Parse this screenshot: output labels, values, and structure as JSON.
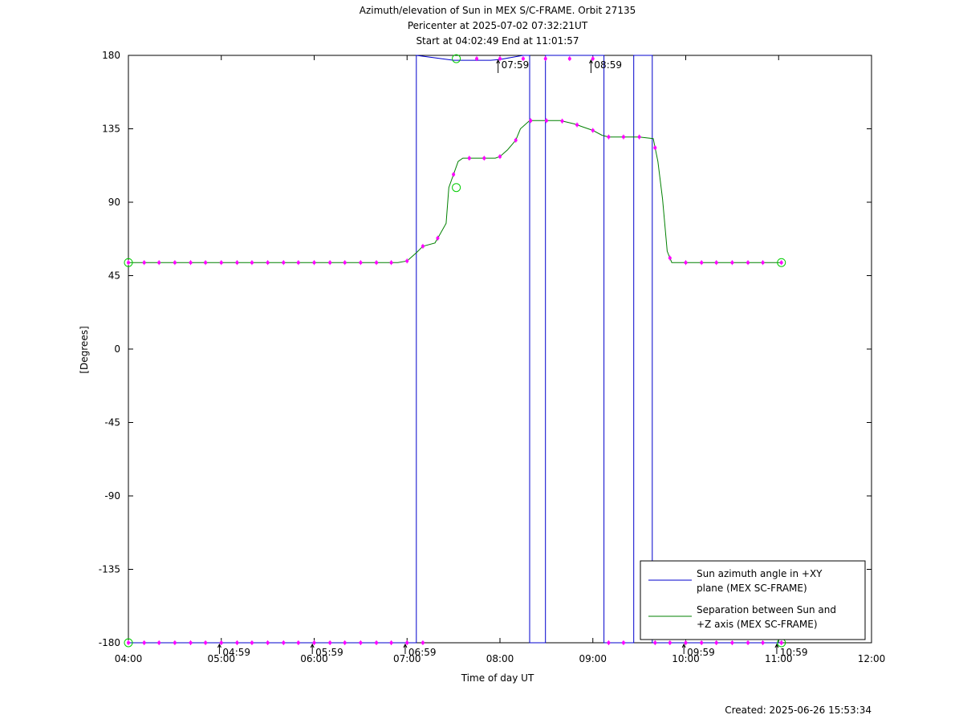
{
  "chart_data": {
    "type": "line",
    "title": [
      "Azimuth/elevation of Sun in MEX S/C-FRAME.  Orbit 27135",
      "Pericenter at 2025-07-02 07:32:21UT",
      "Start at 04:02:49 End at 11:01:57"
    ],
    "xlabel": "Time of day UT",
    "ylabel": "[Degrees]",
    "xlim": [
      4.0,
      12.0
    ],
    "ylim": [
      -180,
      180
    ],
    "x_ticks": [
      4,
      5,
      6,
      7,
      8,
      9,
      10,
      11,
      12
    ],
    "x_tick_labels": [
      "04:00",
      "05:00",
      "06:00",
      "07:00",
      "08:00",
      "09:00",
      "10:00",
      "11:00",
      "12:00"
    ],
    "y_ticks": [
      180,
      135,
      90,
      45,
      0,
      -45,
      -90,
      -135,
      -180
    ],
    "y_tick_labels": [
      "180",
      "135",
      "90",
      "45",
      "0",
      "-45",
      "-90",
      "-135",
      "-180"
    ],
    "grid": false,
    "legend_position": "bottom-right",
    "series": [
      {
        "name": "Sun azimuth angle in +XY plane (MEX SC-FRAME)",
        "legend_lines": [
          "Sun azimuth angle in +XY",
          "plane (MEX SC-FRAME)"
        ],
        "color": "#0000cc",
        "x": [
          4.0,
          7.1,
          7.1,
          7.5,
          7.9,
          8.0,
          8.25,
          8.32,
          8.32,
          8.49,
          8.49,
          8.55,
          9.0,
          9.12,
          9.12,
          9.44,
          9.44,
          9.64,
          9.64,
          11.03
        ],
        "y": [
          -180,
          -180,
          180,
          177,
          177,
          177.5,
          180,
          180,
          -180,
          -180,
          180,
          180,
          180,
          180,
          -180,
          -180,
          180,
          180,
          -180,
          -180
        ]
      },
      {
        "name": "Separation between Sun and +Z axis (MEX SC-FRAME)",
        "legend_lines": [
          "Separation between Sun and",
          "+Z axis (MEX SC-FRAME)"
        ],
        "color": "#008000",
        "x": [
          4.0,
          6.9,
          7.0,
          7.1,
          7.17,
          7.3,
          7.35,
          7.42,
          7.45,
          7.55,
          7.6,
          7.85,
          7.95,
          8.0,
          8.08,
          8.17,
          8.22,
          8.32,
          8.5,
          8.65,
          8.8,
          8.9,
          9.0,
          9.1,
          9.17,
          9.3,
          9.5,
          9.65,
          9.7,
          9.75,
          9.8,
          9.85,
          11.03
        ],
        "y": [
          53,
          53,
          54,
          59,
          63,
          65,
          70,
          77,
          99,
          115,
          117,
          117,
          117,
          118,
          122,
          128,
          135,
          140,
          140,
          140,
          138,
          136,
          134,
          131,
          130,
          130,
          130,
          129,
          115,
          92,
          60,
          53,
          53
        ]
      }
    ],
    "markers": {
      "circle_points": [
        {
          "x": 4.0,
          "y": 53
        },
        {
          "x": 11.03,
          "y": 53
        },
        {
          "x": 4.0,
          "y": -180
        },
        {
          "x": 11.03,
          "y": -180
        },
        {
          "x": 7.53,
          "y": 178
        },
        {
          "x": 7.53,
          "y": 99
        }
      ],
      "tick_marks_azimuth_top": [
        7.75,
        8.0,
        8.25,
        8.49,
        8.75,
        9.0
      ],
      "tick_marks_azimuth_bottom": [
        4.0,
        4.17,
        4.33,
        4.5,
        4.67,
        4.83,
        5.0,
        5.17,
        5.33,
        5.5,
        5.67,
        5.83,
        6.0,
        6.17,
        6.33,
        6.5,
        6.67,
        6.83,
        7.0,
        7.17,
        9.17,
        9.33,
        9.67,
        9.83,
        10.0,
        10.17,
        10.33,
        10.5,
        10.67,
        10.83,
        11.03
      ],
      "tick_marks_separation": [
        4.0,
        4.17,
        4.33,
        4.5,
        4.67,
        4.83,
        5.0,
        5.17,
        5.33,
        5.5,
        5.67,
        5.83,
        6.0,
        6.17,
        6.33,
        6.5,
        6.67,
        6.83,
        7.0,
        7.17,
        7.33,
        7.5,
        7.67,
        7.83,
        8.0,
        8.17,
        8.33,
        8.5,
        8.67,
        8.83,
        9.0,
        9.17,
        9.33,
        9.5,
        9.67,
        9.83,
        10.0,
        10.17,
        10.33,
        10.5,
        10.67,
        10.83,
        11.03
      ]
    },
    "annotations": [
      {
        "text": "04:59",
        "x": 4.98,
        "y": -180
      },
      {
        "text": "05:59",
        "x": 5.98,
        "y": -180
      },
      {
        "text": "06:59",
        "x": 6.98,
        "y": -180
      },
      {
        "text": "07:59",
        "x": 7.98,
        "y": 180
      },
      {
        "text": "08:59",
        "x": 8.98,
        "y": 180
      },
      {
        "text": "09:59",
        "x": 9.98,
        "y": -180
      },
      {
        "text": "10:59",
        "x": 10.98,
        "y": -180
      }
    ],
    "marker_color": "#ff00ff",
    "circle_color": "#00cc00"
  },
  "footer": {
    "created": "Created: 2025-06-26 15:53:34"
  }
}
